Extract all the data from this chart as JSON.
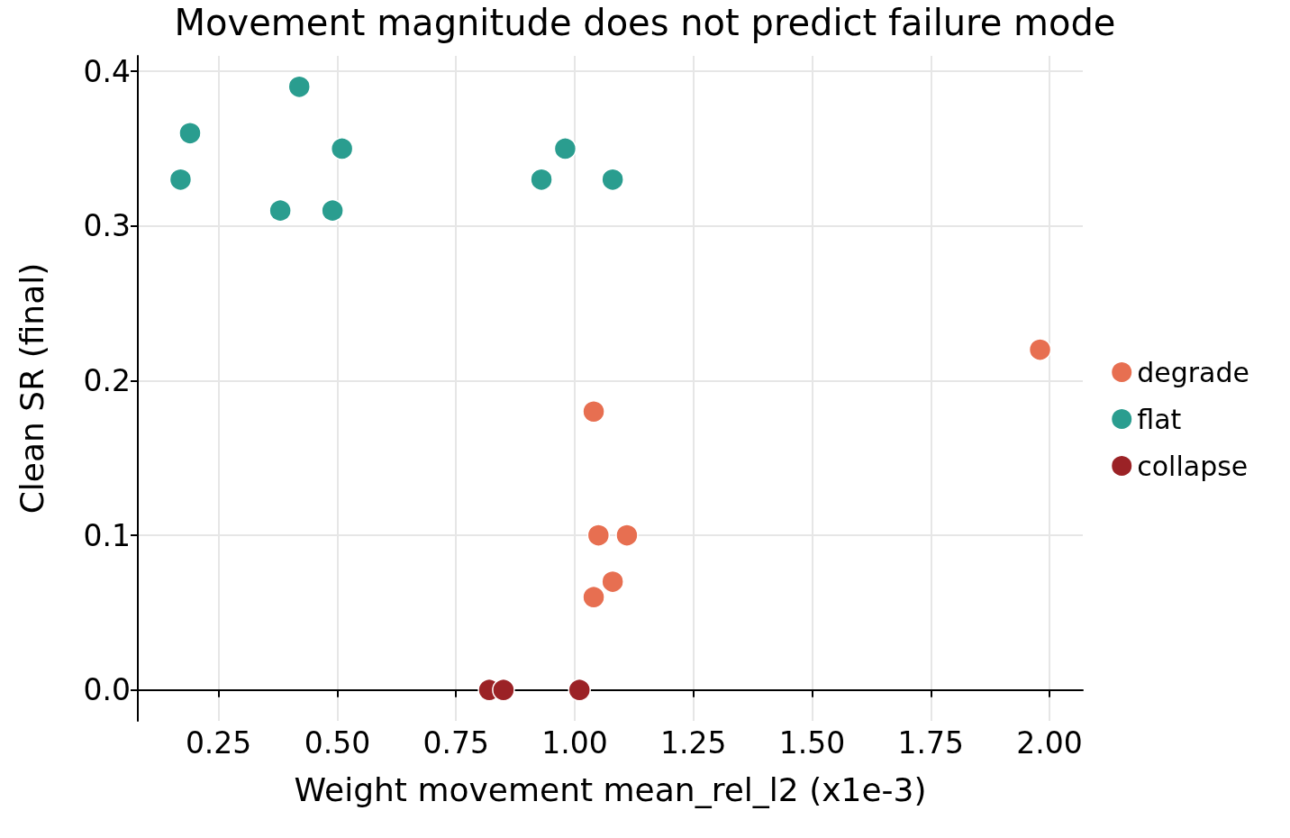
{
  "chart_data": {
    "type": "scatter",
    "title": "Movement magnitude does not predict failure mode",
    "xlabel": "Weight movement mean_rel_l2 (x1e-3)",
    "ylabel": "Clean SR (final)",
    "series": [
      {
        "name": "degrade",
        "color": "#e76f51",
        "x": [
          1.98,
          1.04,
          1.05,
          1.11,
          1.08,
          1.04
        ],
        "values": [
          0.22,
          0.18,
          0.1,
          0.1,
          0.07,
          0.06
        ]
      },
      {
        "name": "flat",
        "color": "#2a9d8f",
        "x": [
          0.17,
          0.19,
          0.42,
          0.51,
          0.38,
          0.49,
          0.93,
          0.98,
          1.08
        ],
        "values": [
          0.33,
          0.36,
          0.39,
          0.35,
          0.31,
          0.31,
          0.33,
          0.35,
          0.33
        ]
      },
      {
        "name": "collapse",
        "color": "#9b2226",
        "x": [
          0.82,
          0.85,
          1.01
        ],
        "values": [
          0,
          0,
          0
        ]
      }
    ],
    "xlim": [
      0.08,
      2.07
    ],
    "ylim": [
      -0.02,
      0.41
    ],
    "xticks": [
      {
        "value": 0.25,
        "label": "0.25"
      },
      {
        "value": 0.5,
        "label": "0.50"
      },
      {
        "value": 0.75,
        "label": "0.75"
      },
      {
        "value": 1,
        "label": "1.00"
      },
      {
        "value": 1.25,
        "label": "1.25"
      },
      {
        "value": 1.5,
        "label": "1.50"
      },
      {
        "value": 1.75,
        "label": "1.75"
      },
      {
        "value": 2,
        "label": "2.00"
      }
    ],
    "yticks": [
      {
        "value": 0,
        "label": "0.0"
      },
      {
        "value": 0.1,
        "label": "0.1"
      },
      {
        "value": 0.2,
        "label": "0.2"
      },
      {
        "value": 0.3,
        "label": "0.3"
      },
      {
        "value": 0.4,
        "label": "0.4"
      }
    ],
    "grid": true,
    "legend": "right",
    "marker": "circle"
  }
}
